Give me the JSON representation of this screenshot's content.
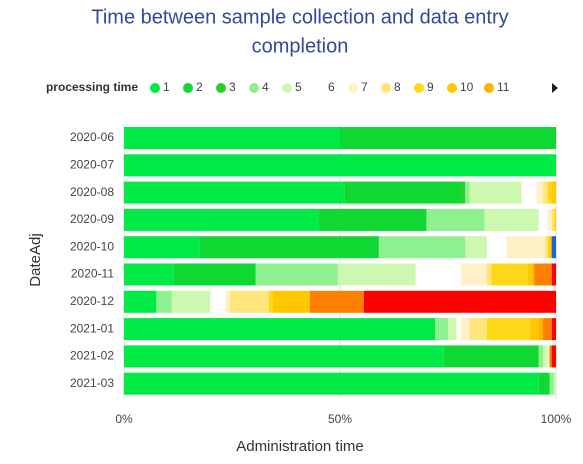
{
  "chart_data": {
    "type": "stacked-barh",
    "title": [
      "Time between sample collection and data entry",
      "completion"
    ],
    "xlabel": "Administration time",
    "ylabel": "DateAdj",
    "legend_title": "processing time",
    "categories": [
      "2020-06",
      "2020-07",
      "2020-08",
      "2020-09",
      "2020-10",
      "2020-11",
      "2020-12",
      "2021-01",
      "2021-02",
      "2021-03"
    ],
    "xlim": [
      0,
      100
    ],
    "xticks": [
      {
        "value": 0,
        "label": "0%"
      },
      {
        "value": 50,
        "label": "50%"
      },
      {
        "value": 100,
        "label": "100%"
      }
    ],
    "grid": true,
    "series": [
      {
        "name": "1",
        "color": "#00ea46",
        "values": [
          50,
          100,
          51,
          45,
          17.5,
          11.5,
          7.5,
          72,
          74,
          96
        ]
      },
      {
        "name": "2",
        "color": "#10d832",
        "values": [
          50,
          0,
          27,
          25,
          41.5,
          19,
          0,
          0,
          22,
          2.5
        ]
      },
      {
        "name": "3",
        "color": "#2ad02a",
        "values": [
          0,
          0,
          1,
          0,
          0,
          0,
          0,
          0,
          0,
          0
        ]
      },
      {
        "name": "4",
        "color": "#8ef08e",
        "values": [
          0,
          0,
          1,
          13.5,
          20,
          19,
          3.5,
          3,
          1,
          1
        ]
      },
      {
        "name": "5",
        "color": "#ccf8b0",
        "values": [
          0,
          0,
          12,
          12.5,
          5,
          18,
          9,
          2,
          1,
          0.5
        ]
      },
      {
        "name": "6",
        "color": "#ffffff",
        "values": [
          0,
          0,
          3.5,
          2,
          4.5,
          10.5,
          3.5,
          1,
          0,
          0
        ]
      },
      {
        "name": "7",
        "color": "#fff0c8",
        "values": [
          0,
          0,
          1.5,
          1,
          9,
          6,
          1,
          2,
          0.5,
          0
        ]
      },
      {
        "name": "8",
        "color": "#ffe57a",
        "values": [
          0,
          0,
          1,
          0.5,
          0.5,
          1,
          9,
          4,
          0,
          0
        ]
      },
      {
        "name": "9",
        "color": "#ffd81a",
        "values": [
          0,
          0,
          1,
          0.5,
          0.5,
          8.5,
          1,
          10,
          0,
          0
        ]
      },
      {
        "name": "10",
        "color": "#ffc800",
        "values": [
          0,
          0,
          1,
          0,
          0.5,
          1,
          8.5,
          2,
          0,
          0
        ]
      },
      {
        "name": "11",
        "color": "#ffb400",
        "values": [
          0,
          0,
          0,
          0,
          0,
          0.5,
          0,
          1,
          0,
          0
        ]
      },
      {
        "name": null,
        "color": "#ff8000",
        "values": [
          0,
          0,
          0,
          0,
          0,
          4,
          12.5,
          2,
          0.5,
          0
        ]
      },
      {
        "name": null,
        "color": "#ff0000",
        "values": [
          0,
          0,
          0,
          0,
          0,
          1,
          44.5,
          1,
          1,
          0
        ]
      },
      {
        "name": null,
        "color": "#2060e0",
        "values": [
          0,
          0,
          0,
          0,
          1,
          0,
          0,
          0,
          0,
          0
        ]
      }
    ]
  }
}
